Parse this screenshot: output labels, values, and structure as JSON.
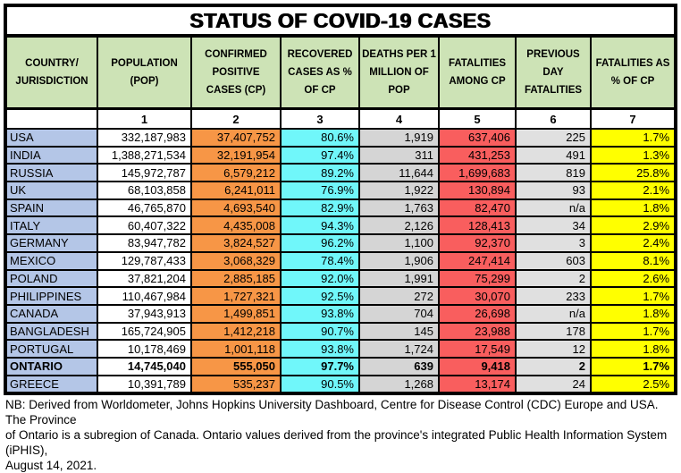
{
  "title": "STATUS OF COVID-19 CASES",
  "chart_data": {
    "type": "table",
    "columns": [
      "COUNTRY/ JURISDICTION",
      "POPULATION (POP)",
      "CONFIRMED POSITIVE CASES (CP)",
      "RECOVERED CASES AS % OF CP",
      "DEATHS PER 1 MILLION OF POP",
      "FATALITIES AMONG CP",
      "PREVIOUS DAY FATALITIES",
      "FATALITIES AS % OF CP"
    ],
    "column_numbers": [
      "",
      "1",
      "2",
      "3",
      "4",
      "5",
      "6",
      "7"
    ],
    "rows": [
      {
        "country": "USA",
        "population": "332,187,983",
        "confirmed_positive": "37,407,752",
        "recovered_pct": "80.6%",
        "deaths_per_million": "1,919",
        "fatalities": "637,406",
        "previous_day_fatalities": "225",
        "fatalities_pct": "1.7%",
        "bold": false
      },
      {
        "country": "INDIA",
        "population": "1,388,271,534",
        "confirmed_positive": "32,191,954",
        "recovered_pct": "97.4%",
        "deaths_per_million": "311",
        "fatalities": "431,253",
        "previous_day_fatalities": "491",
        "fatalities_pct": "1.3%",
        "bold": false
      },
      {
        "country": "RUSSIA",
        "population": "145,972,787",
        "confirmed_positive": "6,579,212",
        "recovered_pct": "89.2%",
        "deaths_per_million": "11,644",
        "fatalities": "1,699,683",
        "previous_day_fatalities": "819",
        "fatalities_pct": "25.8%",
        "bold": false
      },
      {
        "country": "UK",
        "population": "68,103,858",
        "confirmed_positive": "6,241,011",
        "recovered_pct": "76.9%",
        "deaths_per_million": "1,922",
        "fatalities": "130,894",
        "previous_day_fatalities": "93",
        "fatalities_pct": "2.1%",
        "bold": false
      },
      {
        "country": "SPAIN",
        "population": "46,765,870",
        "confirmed_positive": "4,693,540",
        "recovered_pct": "82.9%",
        "deaths_per_million": "1,763",
        "fatalities": "82,470",
        "previous_day_fatalities": "n/a",
        "fatalities_pct": "1.8%",
        "bold": false
      },
      {
        "country": "ITALY",
        "population": "60,407,322",
        "confirmed_positive": "4,435,008",
        "recovered_pct": "94.3%",
        "deaths_per_million": "2,126",
        "fatalities": "128,413",
        "previous_day_fatalities": "34",
        "fatalities_pct": "2.9%",
        "bold": false
      },
      {
        "country": "GERMANY",
        "population": "83,947,782",
        "confirmed_positive": "3,824,527",
        "recovered_pct": "96.2%",
        "deaths_per_million": "1,100",
        "fatalities": "92,370",
        "previous_day_fatalities": "3",
        "fatalities_pct": "2.4%",
        "bold": false
      },
      {
        "country": "MEXICO",
        "population": "129,787,433",
        "confirmed_positive": "3,068,329",
        "recovered_pct": "78.4%",
        "deaths_per_million": "1,906",
        "fatalities": "247,414",
        "previous_day_fatalities": "603",
        "fatalities_pct": "8.1%",
        "bold": false
      },
      {
        "country": "POLAND",
        "population": "37,821,204",
        "confirmed_positive": "2,885,185",
        "recovered_pct": "92.0%",
        "deaths_per_million": "1,991",
        "fatalities": "75,299",
        "previous_day_fatalities": "2",
        "fatalities_pct": "2.6%",
        "bold": false
      },
      {
        "country": "PHILIPPINES",
        "population": "110,467,984",
        "confirmed_positive": "1,727,321",
        "recovered_pct": "92.5%",
        "deaths_per_million": "272",
        "fatalities": "30,070",
        "previous_day_fatalities": "233",
        "fatalities_pct": "1.7%",
        "bold": false
      },
      {
        "country": "CANADA",
        "population": "37,943,913",
        "confirmed_positive": "1,499,851",
        "recovered_pct": "93.8%",
        "deaths_per_million": "704",
        "fatalities": "26,698",
        "previous_day_fatalities": "n/a",
        "fatalities_pct": "1.8%",
        "bold": false
      },
      {
        "country": "BANGLADESH",
        "population": "165,724,905",
        "confirmed_positive": "1,412,218",
        "recovered_pct": "90.7%",
        "deaths_per_million": "145",
        "fatalities": "23,988",
        "previous_day_fatalities": "178",
        "fatalities_pct": "1.7%",
        "bold": false
      },
      {
        "country": "PORTUGAL",
        "population": "10,178,469",
        "confirmed_positive": "1,001,118",
        "recovered_pct": "93.8%",
        "deaths_per_million": "1,724",
        "fatalities": "17,549",
        "previous_day_fatalities": "12",
        "fatalities_pct": "1.8%",
        "bold": false
      },
      {
        "country": "ONTARIO",
        "population": "14,745,040",
        "confirmed_positive": "555,050",
        "recovered_pct": "97.7%",
        "deaths_per_million": "639",
        "fatalities": "9,418",
        "previous_day_fatalities": "2",
        "fatalities_pct": "1.7%",
        "bold": true
      },
      {
        "country": "GREECE",
        "population": "10,391,789",
        "confirmed_positive": "535,237",
        "recovered_pct": "90.5%",
        "deaths_per_million": "1,268",
        "fatalities": "13,174",
        "previous_day_fatalities": "24",
        "fatalities_pct": "2.5%",
        "bold": false
      }
    ]
  },
  "footer": {
    "lines": [
      "NB: Derived from Worldometer, Johns Hopkins University Dashboard, Centre for Disease Control (CDC) Europe and USA. The Province",
      "of Ontario is a subregion of Canada. Ontario values derived from the province's integrated Public Health Information System (iPHIS),",
      "August 14, 2021."
    ]
  },
  "colors": {
    "header_green": "#CDE3B6",
    "country_lavender": "#B4C6E7",
    "confirmed_orange": "#F79646",
    "recovered_cyan": "#70F7FA",
    "deaths_gray": "#D5D5D5",
    "fatalities_red": "#F95E5E",
    "previous_day_gray": "#E0E0E0",
    "pct_yellow": "#FFFF00",
    "border_black": "#000000"
  }
}
